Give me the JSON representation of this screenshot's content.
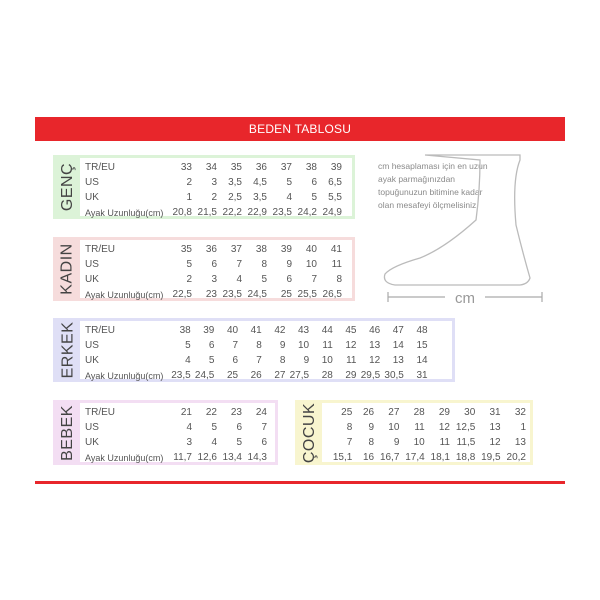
{
  "title": "BEDEN TABLOSU",
  "row_labels": [
    "TR/EU",
    "US",
    "UK",
    "Ayak Uzunluğu(cm)"
  ],
  "tables": {
    "genc": {
      "name": "GENÇ",
      "color": "#dcf3d8",
      "rows": [
        [
          "33",
          "34",
          "35",
          "36",
          "37",
          "38",
          "39"
        ],
        [
          "2",
          "3",
          "3,5",
          "4,5",
          "5",
          "6",
          "6,5"
        ],
        [
          "1",
          "2",
          "2,5",
          "3,5",
          "4",
          "5",
          "5,5"
        ],
        [
          "20,8",
          "21,5",
          "22,2",
          "22,9",
          "23,5",
          "24,2",
          "24,9"
        ]
      ]
    },
    "kadin": {
      "name": "KADIN",
      "color": "#f6dcdc",
      "rows": [
        [
          "35",
          "36",
          "37",
          "38",
          "39",
          "40",
          "41"
        ],
        [
          "5",
          "6",
          "7",
          "8",
          "9",
          "10",
          "11"
        ],
        [
          "2",
          "3",
          "4",
          "5",
          "6",
          "7",
          "8"
        ],
        [
          "22,5",
          "23",
          "23,5",
          "24,5",
          "25",
          "25,5",
          "26,5"
        ]
      ]
    },
    "erkek": {
      "name": "ERKEK",
      "color": "#dfdff6",
      "rows": [
        [
          "38",
          "39",
          "40",
          "41",
          "42",
          "43",
          "44",
          "45",
          "46",
          "47",
          "48"
        ],
        [
          "5",
          "6",
          "7",
          "8",
          "9",
          "10",
          "11",
          "12",
          "13",
          "14",
          "15"
        ],
        [
          "4",
          "5",
          "6",
          "7",
          "8",
          "9",
          "10",
          "11",
          "12",
          "13",
          "14"
        ],
        [
          "23,5",
          "24,5",
          "25",
          "26",
          "27",
          "27,5",
          "28",
          "29",
          "29,5",
          "30,5",
          "31"
        ]
      ]
    },
    "bebek": {
      "name": "BEBEK",
      "color": "#f3def3",
      "rows": [
        [
          "21",
          "22",
          "23",
          "24"
        ],
        [
          "4",
          "5",
          "6",
          "7"
        ],
        [
          "3",
          "4",
          "5",
          "6"
        ],
        [
          "11,7",
          "12,6",
          "13,4",
          "14,3"
        ]
      ]
    },
    "cocuk": {
      "name": "ÇOCUK",
      "color": "#f8f5cf",
      "rows": [
        [
          "25",
          "26",
          "27",
          "28",
          "29",
          "30",
          "31",
          "32"
        ],
        [
          "8",
          "9",
          "10",
          "11",
          "12",
          "12,5",
          "13",
          "1"
        ],
        [
          "7",
          "8",
          "9",
          "10",
          "11",
          "11,5",
          "12",
          "13"
        ],
        [
          "15,1",
          "16",
          "16,7",
          "17,4",
          "18,1",
          "18,8",
          "19,5",
          "20,2"
        ]
      ]
    }
  },
  "note": "cm hesaplaması için en uzun ayak parmağınızdan topuğunuzun bitimine kadar olan mesafeyi ölçmelisiniz.",
  "unit_label": "cm"
}
